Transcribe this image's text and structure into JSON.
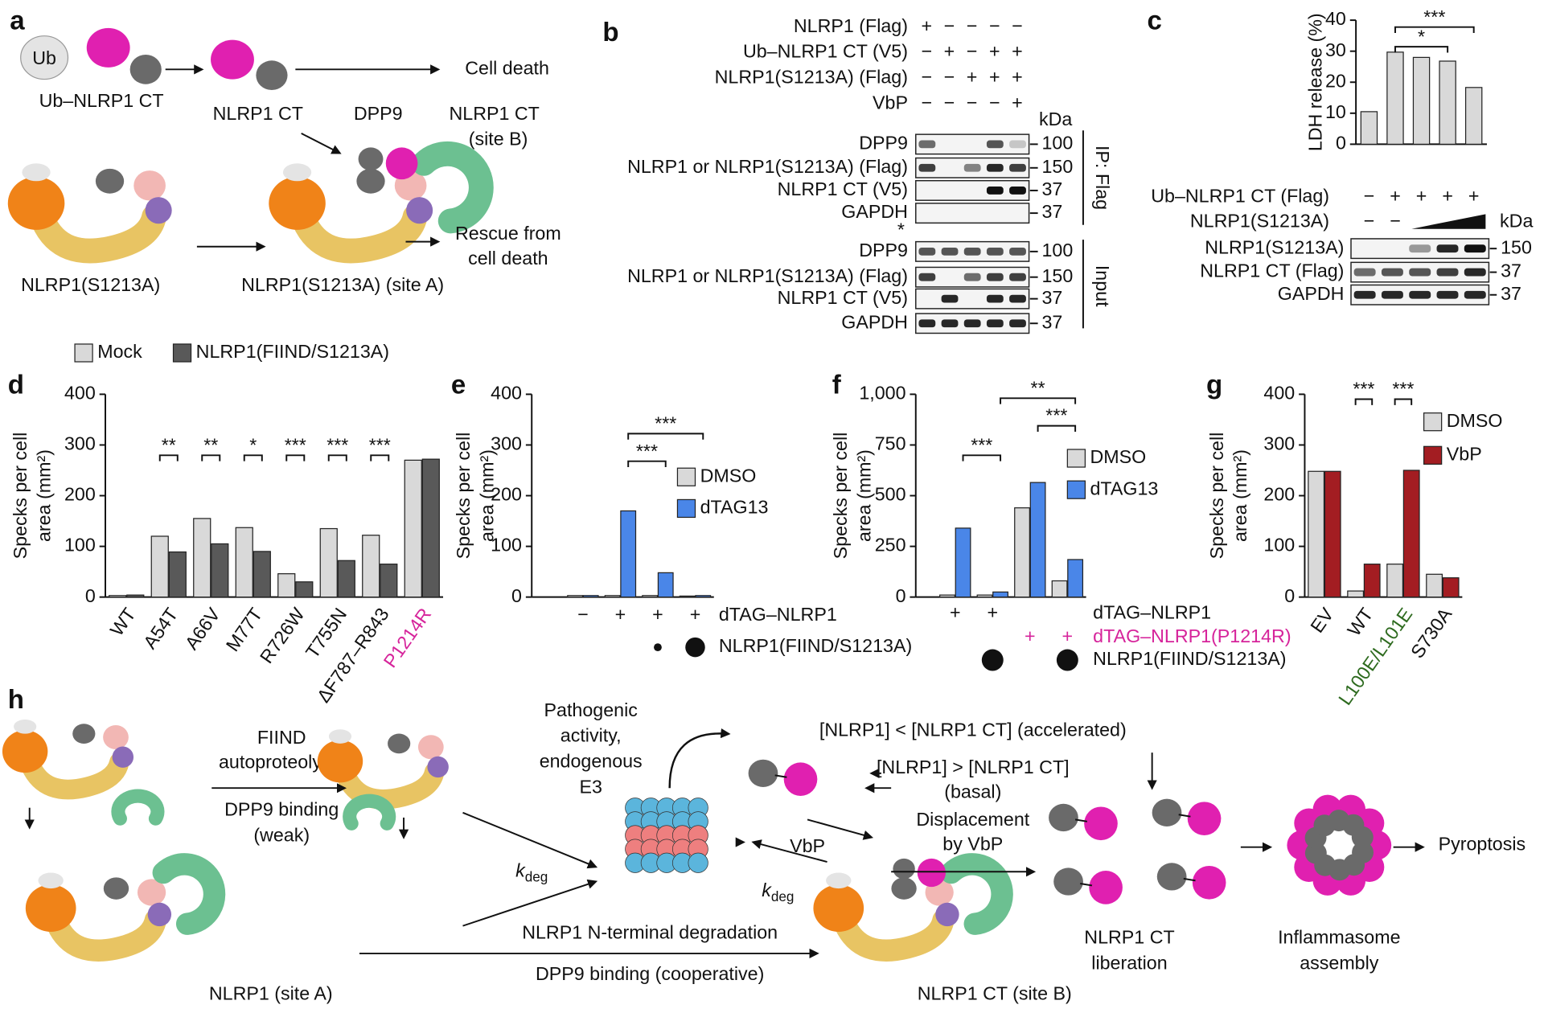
{
  "figure": {
    "panel_labels": [
      "a",
      "b",
      "c",
      "d",
      "e",
      "f",
      "g",
      "h"
    ],
    "a": {
      "labels": [
        "Ub",
        "Ub–NLRP1 CT",
        "NLRP1 CT",
        "Cell death",
        "DPP9",
        "NLRP1 CT",
        "(site B)",
        "NLRP1(S1213A)",
        "NLRP1(S1213A) (site A)",
        "Rescue from",
        "cell death"
      ]
    },
    "b": {
      "conditions": [
        {
          "name": "NLRP1 (Flag)",
          "values": [
            "+",
            "−",
            "−",
            "−",
            "−"
          ]
        },
        {
          "name": "Ub–NLRP1 CT (V5)",
          "values": [
            "−",
            "+",
            "−",
            "+",
            "+"
          ]
        },
        {
          "name": "NLRP1(S1213A) (Flag)",
          "values": [
            "−",
            "−",
            "+",
            "+",
            "+"
          ]
        },
        {
          "name": "VbP",
          "values": [
            "−",
            "−",
            "−",
            "−",
            "+"
          ]
        }
      ],
      "unit": "kDa",
      "ip_label": "IP: Flag",
      "input_label": "Input",
      "asterisk": "*",
      "ip_blots": [
        {
          "name": "DPP9",
          "marker": 100
        },
        {
          "name": "NLRP1 or NLRP1(S1213A) (Flag)",
          "marker": 150
        },
        {
          "name": "NLRP1 CT (V5)",
          "marker": 37
        },
        {
          "name": "GAPDH",
          "marker": 37
        }
      ],
      "input_blots": [
        {
          "name": "DPP9",
          "marker": 100
        },
        {
          "name": "NLRP1 or NLRP1(S1213A) (Flag)",
          "marker": 150
        },
        {
          "name": "NLRP1 CT (V5)",
          "marker": 37
        },
        {
          "name": "GAPDH",
          "marker": 37
        }
      ]
    },
    "h": {
      "texts": [
        "FIIND",
        "autoproteolysis",
        "DPP9 binding",
        "(weak)",
        "Pathogenic",
        "activity,",
        "endogenous",
        "E3",
        "[NLRP1] < [NLRP1 CT] (accelerated)",
        "[NLRP1] > [NLRP1 CT]",
        "(basal)",
        "Displacement",
        "by VbP",
        "VbP",
        "NLRP1 N-terminal degradation",
        "DPP9 binding (cooperative)",
        "NLRP1 (site A)",
        "NLRP1 CT (site B)",
        "NLRP1 CT",
        "liberation",
        "Inflammasome",
        "assembly",
        "Pyroptosis"
      ],
      "k": "k",
      "k_sub": "deg"
    }
  },
  "chart_data": [
    {
      "type": "bar",
      "ylabel": "LDH release (%)",
      "values": [
        10.5,
        29.7,
        28.0,
        26.8,
        18.3
      ],
      "color": "#d9d9d9",
      "ylim": [
        0,
        40
      ],
      "yticks": [
        0,
        10,
        20,
        30,
        40
      ],
      "significance": [
        "*",
        "***"
      ],
      "conditions": [
        {
          "name": "Ub–NLRP1 CT (Flag)",
          "values": [
            "−",
            "+",
            "+",
            "+",
            "+"
          ]
        },
        {
          "name": "NLRP1(S1213A)",
          "values": [
            "−",
            "−",
            null,
            null,
            null
          ]
        }
      ],
      "unit": "kDa",
      "blots": [
        {
          "name": "NLRP1(S1213A)",
          "marker": 150
        },
        {
          "name": "NLRP1 CT (Flag)",
          "marker": 37
        },
        {
          "name": "GAPDH",
          "marker": 37
        }
      ]
    },
    {
      "type": "grouped_bar",
      "ylabel": [
        "Specks per cell",
        "area (mm²)"
      ],
      "categories": [
        "WT",
        "A54T",
        "A66V",
        "M77T",
        "R726W",
        "T755N",
        "ΔF787–R843",
        "P1214R"
      ],
      "category_colors": [
        "#111111",
        "#111111",
        "#111111",
        "#111111",
        "#111111",
        "#111111",
        "#111111",
        "#d6249b"
      ],
      "series": [
        {
          "name": "Mock",
          "color": "#d9d9d9",
          "values": [
            3,
            120,
            155,
            137,
            46,
            135,
            122,
            270
          ]
        },
        {
          "name": "NLRP1(FIIND/S1213A)",
          "color": "#595959",
          "values": [
            4,
            89,
            105,
            90,
            30,
            72,
            65,
            272
          ]
        }
      ],
      "ylim": [
        0,
        400
      ],
      "yticks": [
        0,
        100,
        200,
        300,
        400
      ],
      "significance": [
        "**",
        "**",
        "*",
        "***",
        "***",
        "***"
      ],
      "legend": "top"
    },
    {
      "type": "grouped_bar",
      "ylabel": [
        "Specks per cell",
        "area (mm²)"
      ],
      "series": [
        {
          "name": "DMSO",
          "color": "#d9d9d9",
          "values": [
            3,
            3,
            3,
            2
          ]
        },
        {
          "name": "dTAG13",
          "color": "#4a86e8",
          "values": [
            3,
            170,
            48,
            3
          ]
        }
      ],
      "ylim": [
        0,
        400
      ],
      "yticks": [
        0,
        100,
        200,
        300,
        400
      ],
      "significance": [
        "***",
        "***"
      ],
      "legend": "right",
      "conditions": [
        {
          "name": "dTAG–NLRP1",
          "values": [
            "−",
            "+",
            "+",
            "+"
          ]
        },
        {
          "name": "NLRP1(FIIND/S1213A)"
        }
      ]
    },
    {
      "type": "grouped_bar",
      "ylabel": [
        "Specks per cell",
        "area (mm²)"
      ],
      "series": [
        {
          "name": "DMSO",
          "color": "#d9d9d9",
          "values": [
            10,
            10,
            440,
            80
          ]
        },
        {
          "name": "dTAG13",
          "color": "#4a86e8",
          "values": [
            340,
            25,
            565,
            185
          ]
        }
      ],
      "ylim": [
        0,
        1000
      ],
      "yticks": [
        0,
        250,
        500,
        750,
        {
          "value": 1000,
          "label": "1,000"
        }
      ],
      "significance": [
        "***",
        "**",
        "***"
      ],
      "legend": "right",
      "conditions": [
        {
          "name": "dTAG–NLRP1",
          "values": [
            "+",
            "+",
            null,
            null
          ]
        },
        {
          "name": "dTAG–NLRP1(P1214R)",
          "color": "#d6249b",
          "values": [
            null,
            null,
            "+",
            "+"
          ]
        },
        {
          "name": "NLRP1(FIIND/S1213A)"
        }
      ]
    },
    {
      "type": "grouped_bar",
      "ylabel": [
        "Specks per cell",
        "area (mm²)"
      ],
      "categories": [
        "EV",
        "WT",
        "L100E/L101E",
        "S730A"
      ],
      "category_colors": [
        "#111111",
        "#111111",
        "#2e6b1f",
        "#111111"
      ],
      "series": [
        {
          "name": "DMSO",
          "color": "#d9d9d9",
          "values": [
            248,
            12,
            65,
            45
          ]
        },
        {
          "name": "VbP",
          "color": "#a31d22",
          "values": [
            248,
            65,
            250,
            38
          ]
        }
      ],
      "ylim": [
        0,
        400
      ],
      "yticks": [
        0,
        100,
        200,
        300,
        400
      ],
      "significance": [
        "***",
        "***"
      ],
      "legend": "right"
    }
  ]
}
